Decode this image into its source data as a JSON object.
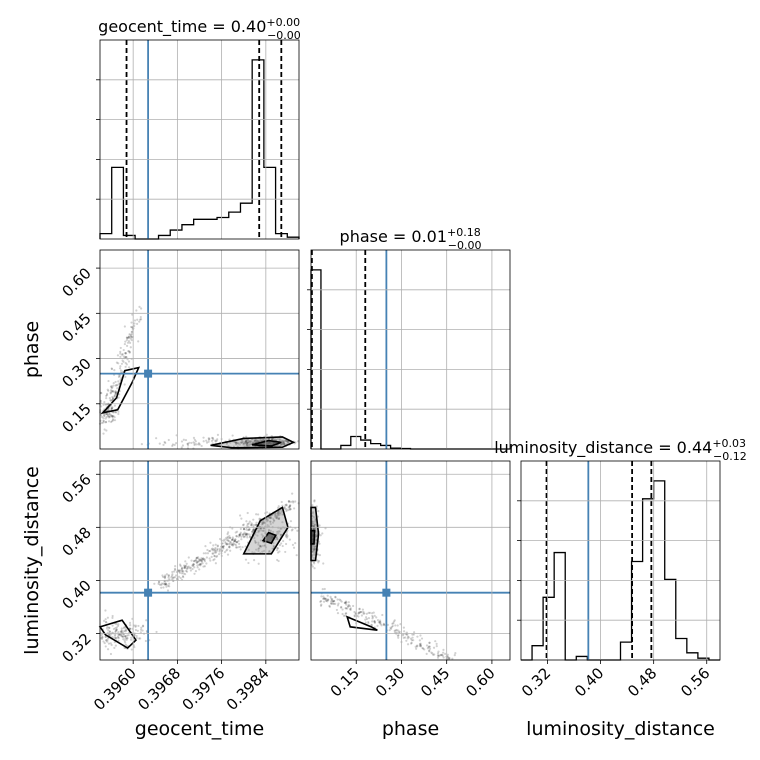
{
  "chart_data": {
    "type": "corner",
    "parameters": [
      {
        "name": "geocent_time",
        "title": {
          "prefix": "geocent_time = 0.40",
          "sup": "+0.00",
          "sub": "−0.00"
        },
        "range": [
          0.3954,
          0.399
        ],
        "ticks": [
          0.396,
          0.3968,
          0.3976,
          0.3984
        ],
        "tick_labels": [
          "0.3960",
          "0.3968",
          "0.3976",
          "0.3984"
        ],
        "truth": 0.39627,
        "quantiles": [
          0.39588,
          0.39828,
          0.39868
        ],
        "histogram": [
          0.03,
          0.4,
          0.02,
          0.0,
          0.0,
          0.02,
          0.05,
          0.08,
          0.11,
          0.11,
          0.12,
          0.15,
          0.2,
          1.0,
          0.4,
          0.03,
          0.01
        ]
      },
      {
        "name": "phase",
        "title": {
          "prefix": "phase = 0.01",
          "sup": "+0.18",
          "sub": "−0.00"
        },
        "range": [
          0.0,
          0.66
        ],
        "ticks": [
          0.15,
          0.3,
          0.45,
          0.6
        ],
        "tick_labels": [
          "0.15",
          "0.30",
          "0.45",
          "0.60"
        ],
        "truth": 0.25,
        "quantiles": [
          0.003,
          0.18
        ],
        "histogram": [
          1.0,
          0.0,
          0.0,
          0.02,
          0.07,
          0.05,
          0.03,
          0.02,
          0.005,
          0.003,
          0,
          0,
          0,
          0,
          0,
          0,
          0,
          0,
          0,
          0
        ]
      },
      {
        "name": "luminosity_distance",
        "title": {
          "prefix": "luminosity_distance = 0.44",
          "sup": "+0.03",
          "sub": "−0.12"
        },
        "range": [
          0.28,
          0.58
        ],
        "ticks": [
          0.32,
          0.4,
          0.48,
          0.56
        ],
        "tick_labels": [
          "0.32",
          "0.40",
          "0.48",
          "0.56"
        ],
        "truth": 0.3815,
        "quantiles": [
          0.3185,
          0.4475,
          0.4765
        ],
        "histogram": [
          0.0,
          0.08,
          0.35,
          0.6,
          0.0,
          0.02,
          0.0,
          0.0,
          0.0,
          0.1,
          0.55,
          0.9,
          1.0,
          0.45,
          0.12,
          0.04,
          0.01,
          0.0
        ]
      }
    ],
    "axis_labels": [
      "geocent_time",
      "phase",
      "luminosity_distance"
    ],
    "row_axis_labels": [
      "phase",
      "luminosity_distance"
    ],
    "truth_color": "#4682b4",
    "grid": true
  }
}
